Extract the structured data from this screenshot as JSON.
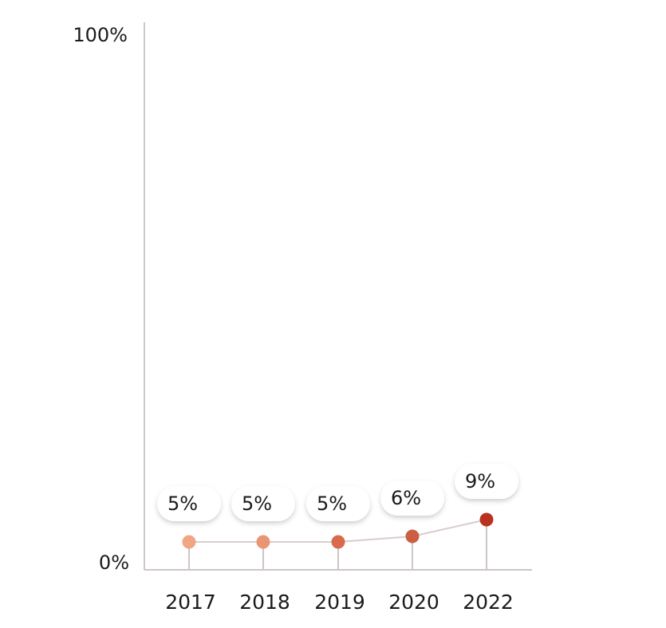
{
  "chart_data": {
    "type": "line",
    "categories": [
      "2017",
      "2018",
      "2019",
      "2020",
      "2022"
    ],
    "values": [
      5,
      5,
      5,
      6,
      9
    ],
    "value_labels": [
      "5%",
      "5%",
      "5%",
      "6%",
      "9%"
    ],
    "ylim": [
      0,
      100
    ],
    "y_tick_labels": [
      "100%",
      "0%"
    ],
    "grid": false,
    "colors": {
      "axis": "#cfc6c6",
      "line": "#d9cccc",
      "markers": [
        "#f0a584",
        "#ea9574",
        "#d86b4c",
        "#cc5f43",
        "#b8321f"
      ]
    }
  }
}
